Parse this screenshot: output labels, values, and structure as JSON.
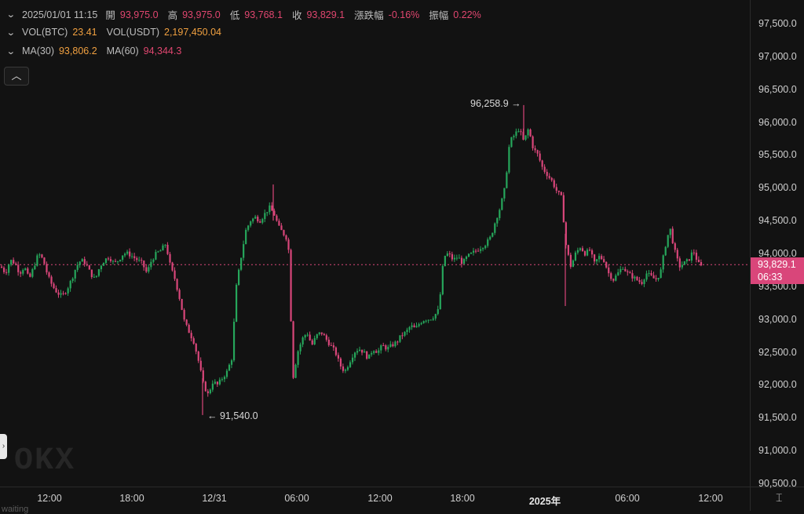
{
  "legend": {
    "timestamp": "2025/01/01 11:15",
    "open_label": "開",
    "open": "93,975.0",
    "high_label": "高",
    "high": "93,975.0",
    "low_label": "低",
    "low": "93,768.1",
    "close_label": "收",
    "close": "93,829.1",
    "change_label": "漲跌幅",
    "change": "-0.16%",
    "amplitude_label": "振幅",
    "amplitude": "0.22%",
    "vol_btc_label": "VOL(BTC)",
    "vol_btc": "23.41",
    "vol_usdt_label": "VOL(USDT)",
    "vol_usdt": "2,197,450.04",
    "ma30_label": "MA(30)",
    "ma30": "93,806.2",
    "ma60_label": "MA(60)",
    "ma60": "94,344.3"
  },
  "controls": {
    "collapse_icon": "chevron-up-icon",
    "left_handle": "chevron-right-icon"
  },
  "price_tag": {
    "price": "93,829.1",
    "countdown": "06:33"
  },
  "annotations": {
    "high": "96,258.9 →",
    "low": "← 91,540.0"
  },
  "watermark": {
    "logo": "OKX",
    "bottom": "waiting"
  },
  "colors": {
    "up": "#26a65b",
    "down": "#d9467a",
    "background": "#121212",
    "orange": "#f0a040"
  },
  "chart_data": {
    "type": "candlestick",
    "y_ticks": [
      "97,500.0",
      "97,000.0",
      "96,500.0",
      "96,000.0",
      "95,500.0",
      "95,000.0",
      "94,500.0",
      "94,000.0",
      "93,500.0",
      "93,000.0",
      "92,500.0",
      "92,000.0",
      "91,500.0",
      "91,000.0",
      "90,500.0"
    ],
    "y_tick_values": [
      97500,
      97000,
      96500,
      96000,
      95500,
      95000,
      94500,
      94000,
      93500,
      93000,
      92500,
      92000,
      91500,
      91000,
      90500
    ],
    "x_ticks": [
      "12:00",
      "18:00",
      "12/31",
      "06:00",
      "12:00",
      "18:00",
      "2025年",
      "06:00",
      "12:00"
    ],
    "current_price": 93829.1,
    "high_marker": 96258.9,
    "low_marker": 91540.0,
    "ylim": [
      90450,
      97700
    ],
    "path": [
      [
        0,
        93800
      ],
      [
        6,
        93700
      ],
      [
        12,
        93900
      ],
      [
        18,
        93850
      ],
      [
        24,
        93700
      ],
      [
        30,
        93800
      ],
      [
        36,
        93600
      ],
      [
        42,
        93800
      ],
      [
        48,
        94000
      ],
      [
        54,
        93900
      ],
      [
        60,
        93650
      ],
      [
        66,
        93500
      ],
      [
        72,
        93400
      ],
      [
        78,
        93350
      ],
      [
        84,
        93450
      ],
      [
        90,
        93600
      ],
      [
        96,
        93800
      ],
      [
        102,
        93900
      ],
      [
        108,
        93850
      ],
      [
        114,
        93700
      ],
      [
        120,
        93600
      ],
      [
        126,
        93800
      ],
      [
        132,
        93900
      ],
      [
        138,
        93950
      ],
      [
        144,
        93850
      ],
      [
        150,
        93900
      ],
      [
        156,
        94000
      ],
      [
        162,
        94000
      ],
      [
        168,
        93950
      ],
      [
        174,
        93900
      ],
      [
        180,
        93850
      ],
      [
        186,
        93700
      ],
      [
        192,
        93900
      ],
      [
        198,
        94000
      ],
      [
        204,
        94050
      ],
      [
        210,
        94150
      ],
      [
        216,
        93800
      ],
      [
        222,
        93600
      ],
      [
        228,
        93300
      ],
      [
        234,
        92950
      ],
      [
        240,
        92800
      ],
      [
        246,
        92650
      ],
      [
        252,
        92350
      ],
      [
        258,
        92000
      ],
      [
        264,
        91850
      ],
      [
        270,
        92050
      ],
      [
        276,
        92000
      ],
      [
        282,
        92100
      ],
      [
        288,
        92200
      ],
      [
        294,
        92400
      ],
      [
        300,
        93500
      ],
      [
        306,
        93950
      ],
      [
        312,
        94350
      ],
      [
        318,
        94500
      ],
      [
        324,
        94550
      ],
      [
        330,
        94500
      ],
      [
        336,
        94600
      ],
      [
        342,
        94700
      ],
      [
        348,
        94600
      ],
      [
        354,
        94400
      ],
      [
        360,
        94300
      ],
      [
        366,
        94200
      ],
      [
        372,
        92100
      ],
      [
        378,
        92500
      ],
      [
        384,
        92700
      ],
      [
        390,
        92800
      ],
      [
        396,
        92600
      ],
      [
        402,
        92750
      ],
      [
        408,
        92800
      ],
      [
        414,
        92700
      ],
      [
        420,
        92600
      ],
      [
        426,
        92500
      ],
      [
        432,
        92300
      ],
      [
        438,
        92200
      ],
      [
        444,
        92350
      ],
      [
        450,
        92500
      ],
      [
        456,
        92550
      ],
      [
        462,
        92500
      ],
      [
        468,
        92400
      ],
      [
        474,
        92550
      ],
      [
        480,
        92500
      ],
      [
        486,
        92600
      ],
      [
        492,
        92550
      ],
      [
        498,
        92600
      ],
      [
        504,
        92650
      ],
      [
        510,
        92750
      ],
      [
        516,
        92800
      ],
      [
        522,
        92900
      ],
      [
        528,
        92850
      ],
      [
        534,
        92950
      ],
      [
        540,
        93000
      ],
      [
        546,
        93000
      ],
      [
        552,
        93050
      ],
      [
        558,
        93150
      ],
      [
        564,
        93950
      ],
      [
        570,
        94000
      ],
      [
        576,
        93900
      ],
      [
        582,
        93950
      ],
      [
        588,
        93850
      ],
      [
        594,
        93950
      ],
      [
        600,
        94000
      ],
      [
        606,
        94050
      ],
      [
        612,
        94100
      ],
      [
        618,
        94150
      ],
      [
        624,
        94250
      ],
      [
        630,
        94500
      ],
      [
        636,
        94700
      ],
      [
        642,
        95000
      ],
      [
        648,
        95700
      ],
      [
        654,
        95800
      ],
      [
        660,
        95900
      ],
      [
        666,
        95700
      ],
      [
        672,
        95900
      ],
      [
        678,
        95600
      ],
      [
        684,
        95500
      ],
      [
        690,
        95300
      ],
      [
        696,
        95200
      ],
      [
        702,
        95100
      ],
      [
        708,
        94950
      ],
      [
        714,
        94850
      ],
      [
        720,
        94100
      ],
      [
        726,
        93800
      ],
      [
        732,
        94000
      ],
      [
        738,
        94100
      ],
      [
        744,
        94000
      ],
      [
        750,
        94050
      ],
      [
        756,
        93850
      ],
      [
        762,
        93950
      ],
      [
        768,
        93900
      ],
      [
        774,
        93700
      ],
      [
        780,
        93600
      ],
      [
        786,
        93700
      ],
      [
        792,
        93800
      ],
      [
        798,
        93700
      ],
      [
        804,
        93650
      ],
      [
        810,
        93600
      ],
      [
        816,
        93550
      ],
      [
        822,
        93700
      ],
      [
        828,
        93650
      ],
      [
        834,
        93600
      ],
      [
        840,
        93700
      ],
      [
        846,
        94100
      ],
      [
        852,
        94400
      ],
      [
        858,
        94050
      ],
      [
        864,
        93800
      ],
      [
        870,
        93850
      ],
      [
        876,
        93900
      ],
      [
        882,
        94050
      ],
      [
        888,
        93850
      ],
      [
        892,
        93800
      ]
    ]
  }
}
